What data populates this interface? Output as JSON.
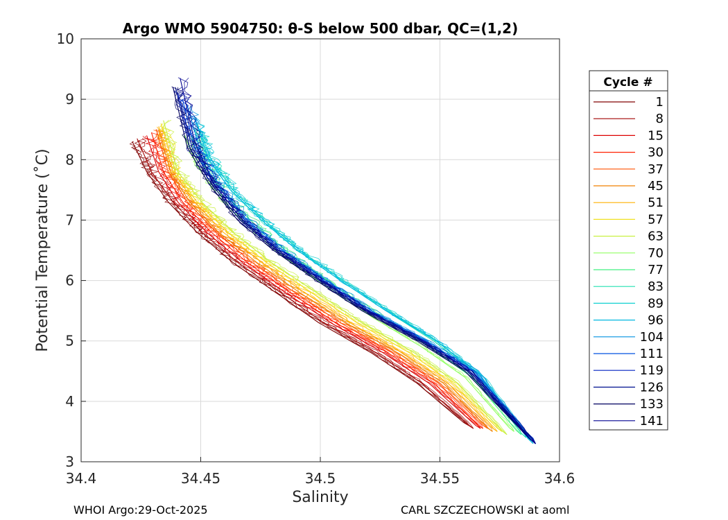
{
  "chart_data": {
    "type": "line",
    "title": "Argo WMO 5904750: θ-S below 500 dbar,  QC=(1,2)",
    "xlabel": "Salinity",
    "ylabel": "Potential Temperature (˚C)",
    "xlim": [
      34.4,
      34.6
    ],
    "ylim": [
      3,
      10
    ],
    "xticks": [
      34.4,
      34.45,
      34.5,
      34.55,
      34.6
    ],
    "xtick_labels": [
      "34.4",
      "34.45",
      "34.5",
      "34.55",
      "34.6"
    ],
    "yticks": [
      3,
      4,
      5,
      6,
      7,
      8,
      9,
      10
    ],
    "ytick_labels": [
      "3",
      "4",
      "5",
      "6",
      "7",
      "8",
      "9",
      "10"
    ],
    "grid": true,
    "legend": {
      "title": "Cycle #",
      "placement": "right, outside axes",
      "entries": [
        {
          "label": "1",
          "color": "#800000"
        },
        {
          "label": "8",
          "color": "#a00000"
        },
        {
          "label": "15",
          "color": "#dd0000"
        },
        {
          "label": "30",
          "color": "#ff2000"
        },
        {
          "label": "37",
          "color": "#ff5000"
        },
        {
          "label": "45",
          "color": "#f08000"
        },
        {
          "label": "51",
          "color": "#ffb000"
        },
        {
          "label": "57",
          "color": "#f0e020"
        },
        {
          "label": "63",
          "color": "#c8f040"
        },
        {
          "label": "70",
          "color": "#90ff60"
        },
        {
          "label": "77",
          "color": "#40f080"
        },
        {
          "label": "83",
          "color": "#20e0b0"
        },
        {
          "label": "89",
          "color": "#10d0d0"
        },
        {
          "label": "96",
          "color": "#00b8e0"
        },
        {
          "label": "104",
          "color": "#0090e0"
        },
        {
          "label": "111",
          "color": "#0050e0"
        },
        {
          "label": "119",
          "color": "#0020c0"
        },
        {
          "label": "126",
          "color": "#001090"
        },
        {
          "label": "133",
          "color": "#000060"
        },
        {
          "label": "141",
          "color": "#000090"
        }
      ]
    },
    "series": [
      {
        "name": "1",
        "x": [
          34.422,
          34.428,
          34.437,
          34.449,
          34.464,
          34.482,
          34.5,
          34.522,
          34.541,
          34.562
        ],
        "y": [
          8.3,
          7.8,
          7.3,
          6.8,
          6.3,
          5.8,
          5.3,
          4.8,
          4.3,
          3.6
        ]
      },
      {
        "name": "8",
        "x": [
          34.424,
          34.43,
          34.439,
          34.451,
          34.466,
          34.484,
          34.502,
          34.524,
          34.543,
          34.564
        ],
        "y": [
          8.35,
          7.8,
          7.3,
          6.8,
          6.3,
          5.8,
          5.3,
          4.8,
          4.3,
          3.55
        ]
      },
      {
        "name": "15",
        "x": [
          34.428,
          34.433,
          34.441,
          34.453,
          34.468,
          34.486,
          34.505,
          34.527,
          34.546,
          34.567
        ],
        "y": [
          8.4,
          7.8,
          7.3,
          6.8,
          6.3,
          5.8,
          5.3,
          4.8,
          4.3,
          3.55
        ]
      },
      {
        "name": "30",
        "x": [
          34.43,
          34.435,
          34.443,
          34.455,
          34.47,
          34.488,
          34.507,
          34.529,
          34.548,
          34.568
        ],
        "y": [
          8.45,
          7.8,
          7.3,
          6.8,
          6.3,
          5.8,
          5.3,
          4.8,
          4.3,
          3.55
        ]
      },
      {
        "name": "37",
        "x": [
          34.432,
          34.437,
          34.445,
          34.457,
          34.472,
          34.49,
          34.509,
          34.531,
          34.55,
          34.57
        ],
        "y": [
          8.5,
          7.8,
          7.3,
          6.8,
          6.3,
          5.8,
          5.3,
          4.8,
          4.3,
          3.55
        ]
      },
      {
        "name": "45",
        "x": [
          34.433,
          34.438,
          34.446,
          34.458,
          34.474,
          34.492,
          34.511,
          34.533,
          34.552,
          34.572
        ],
        "y": [
          8.5,
          7.8,
          7.3,
          6.8,
          6.3,
          5.8,
          5.3,
          4.8,
          4.3,
          3.5
        ]
      },
      {
        "name": "51",
        "x": [
          34.433,
          34.439,
          34.448,
          34.46,
          34.476,
          34.494,
          34.513,
          34.535,
          34.554,
          34.574
        ],
        "y": [
          8.55,
          7.8,
          7.3,
          6.8,
          6.3,
          5.8,
          5.3,
          4.8,
          4.3,
          3.5
        ]
      },
      {
        "name": "57",
        "x": [
          34.434,
          34.44,
          34.449,
          34.462,
          34.478,
          34.497,
          34.516,
          34.538,
          34.556,
          34.576
        ],
        "y": [
          8.6,
          7.8,
          7.3,
          6.8,
          6.3,
          5.8,
          5.3,
          4.8,
          4.3,
          3.5
        ]
      },
      {
        "name": "63",
        "x": [
          34.435,
          34.441,
          34.451,
          34.464,
          34.48,
          34.499,
          34.518,
          34.54,
          34.558,
          34.578
        ],
        "y": [
          8.65,
          7.8,
          7.3,
          6.8,
          6.3,
          5.8,
          5.3,
          4.8,
          4.3,
          3.45
        ]
      },
      {
        "name": "70",
        "x": [
          34.444,
          34.449,
          34.458,
          34.47,
          34.485,
          34.503,
          34.522,
          34.543,
          34.561,
          34.581
        ],
        "y": [
          8.4,
          7.9,
          7.4,
          6.9,
          6.4,
          5.9,
          5.4,
          4.9,
          4.4,
          3.5
        ]
      },
      {
        "name": "77",
        "x": [
          34.447,
          34.452,
          34.461,
          34.474,
          34.489,
          34.507,
          34.526,
          34.546,
          34.564,
          34.584
        ],
        "y": [
          8.4,
          7.9,
          7.4,
          6.9,
          6.4,
          5.9,
          5.4,
          4.9,
          4.4,
          3.45
        ]
      },
      {
        "name": "83",
        "x": [
          34.448,
          34.454,
          34.463,
          34.476,
          34.491,
          34.509,
          34.528,
          34.548,
          34.566,
          34.586
        ],
        "y": [
          8.5,
          8.0,
          7.5,
          7.0,
          6.5,
          6.0,
          5.5,
          5.0,
          4.45,
          3.4
        ]
      },
      {
        "name": "89",
        "x": [
          34.449,
          34.455,
          34.464,
          34.477,
          34.492,
          34.51,
          34.529,
          34.549,
          34.567,
          34.588
        ],
        "y": [
          8.6,
          8.0,
          7.5,
          7.0,
          6.5,
          6.0,
          5.5,
          5.0,
          4.45,
          3.35
        ]
      },
      {
        "name": "96",
        "x": [
          34.448,
          34.454,
          34.463,
          34.476,
          34.491,
          34.509,
          34.528,
          34.549,
          34.567,
          34.589
        ],
        "y": [
          8.7,
          8.0,
          7.5,
          7.0,
          6.5,
          6.0,
          5.5,
          5.0,
          4.45,
          3.3
        ]
      },
      {
        "name": "104",
        "x": [
          34.445,
          34.45,
          34.458,
          34.47,
          34.485,
          34.503,
          34.522,
          34.545,
          34.565,
          34.59
        ],
        "y": [
          8.9,
          8.2,
          7.6,
          7.0,
          6.5,
          6.0,
          5.5,
          5.0,
          4.5,
          3.3
        ]
      },
      {
        "name": "111",
        "x": [
          34.443,
          34.448,
          34.457,
          34.469,
          34.484,
          34.502,
          34.521,
          34.544,
          34.564,
          34.59
        ],
        "y": [
          9.0,
          8.2,
          7.6,
          7.0,
          6.5,
          6.0,
          5.5,
          5.0,
          4.5,
          3.3
        ]
      },
      {
        "name": "119",
        "x": [
          34.441,
          34.447,
          34.456,
          34.468,
          34.483,
          34.501,
          34.52,
          34.543,
          34.563,
          34.59
        ],
        "y": [
          9.1,
          8.2,
          7.6,
          7.0,
          6.5,
          6.0,
          5.5,
          5.0,
          4.5,
          3.3
        ]
      },
      {
        "name": "126",
        "x": [
          34.44,
          34.446,
          34.455,
          34.467,
          34.482,
          34.5,
          34.519,
          34.542,
          34.562,
          34.59
        ],
        "y": [
          9.2,
          8.2,
          7.6,
          7.0,
          6.5,
          6.0,
          5.5,
          5.0,
          4.5,
          3.3
        ]
      },
      {
        "name": "133",
        "x": [
          34.439,
          34.445,
          34.454,
          34.466,
          34.481,
          34.499,
          34.518,
          34.541,
          34.561,
          34.59
        ],
        "y": [
          9.2,
          8.2,
          7.6,
          7.0,
          6.5,
          6.0,
          5.5,
          5.0,
          4.5,
          3.3
        ]
      },
      {
        "name": "141",
        "x": [
          34.442,
          34.448,
          34.456,
          34.468,
          34.483,
          34.501,
          34.52,
          34.543,
          34.563,
          34.59
        ],
        "y": [
          9.35,
          8.3,
          7.6,
          7.0,
          6.5,
          6.0,
          5.5,
          5.0,
          4.5,
          3.3
        ]
      }
    ]
  },
  "footer": {
    "left": "WHOI Argo:29-Oct-2025",
    "right": "CARL SZCZECHOWSKI at aoml"
  }
}
